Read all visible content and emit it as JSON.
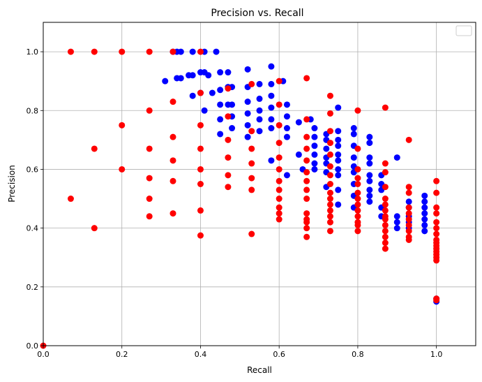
{
  "chart_data": {
    "type": "scatter",
    "title": "Precision vs. Recall",
    "xlabel": "Recall",
    "ylabel": "Precision",
    "xlim": [
      0,
      1.1
    ],
    "ylim": [
      0,
      1.1
    ],
    "xticks": [
      "0.0",
      "0.2",
      "0.4",
      "0.6",
      "0.8",
      "1.0"
    ],
    "yticks": [
      "0.0",
      "0.2",
      "0.4",
      "0.6",
      "0.8",
      "1.0"
    ],
    "grid": true,
    "legend": {
      "placement": "top-right",
      "entries": []
    },
    "series": [
      {
        "color": "#0000ff",
        "points": [
          [
            0.31,
            0.9
          ],
          [
            0.33,
            1.0
          ],
          [
            0.34,
            1.0
          ],
          [
            0.34,
            0.91
          ],
          [
            0.35,
            1.0
          ],
          [
            0.35,
            0.91
          ],
          [
            0.37,
            0.92
          ],
          [
            0.38,
            1.0
          ],
          [
            0.38,
            0.92
          ],
          [
            0.38,
            0.85
          ],
          [
            0.4,
            0.93
          ],
          [
            0.4,
            0.86
          ],
          [
            0.41,
            1.0
          ],
          [
            0.41,
            0.93
          ],
          [
            0.41,
            0.8
          ],
          [
            0.42,
            0.92
          ],
          [
            0.43,
            0.86
          ],
          [
            0.44,
            1.0
          ],
          [
            0.45,
            0.93
          ],
          [
            0.45,
            0.87
          ],
          [
            0.45,
            0.82
          ],
          [
            0.45,
            0.77
          ],
          [
            0.45,
            0.72
          ],
          [
            0.47,
            0.93
          ],
          [
            0.47,
            0.88
          ],
          [
            0.47,
            0.82
          ],
          [
            0.48,
            0.88
          ],
          [
            0.48,
            0.82
          ],
          [
            0.48,
            0.78
          ],
          [
            0.48,
            0.74
          ],
          [
            0.52,
            0.94
          ],
          [
            0.52,
            0.88
          ],
          [
            0.52,
            0.83
          ],
          [
            0.52,
            0.79
          ],
          [
            0.52,
            0.75
          ],
          [
            0.52,
            0.71
          ],
          [
            0.55,
            0.89
          ],
          [
            0.55,
            0.84
          ],
          [
            0.55,
            0.8
          ],
          [
            0.55,
            0.77
          ],
          [
            0.55,
            0.73
          ],
          [
            0.58,
            0.95
          ],
          [
            0.58,
            0.89
          ],
          [
            0.58,
            0.85
          ],
          [
            0.58,
            0.81
          ],
          [
            0.58,
            0.77
          ],
          [
            0.58,
            0.74
          ],
          [
            0.58,
            0.63
          ],
          [
            0.61,
            0.9
          ],
          [
            0.62,
            0.82
          ],
          [
            0.62,
            0.78
          ],
          [
            0.62,
            0.74
          ],
          [
            0.62,
            0.71
          ],
          [
            0.62,
            0.58
          ],
          [
            0.65,
            0.76
          ],
          [
            0.65,
            0.65
          ],
          [
            0.66,
            0.6
          ],
          [
            0.68,
            0.77
          ],
          [
            0.69,
            0.74
          ],
          [
            0.69,
            0.71
          ],
          [
            0.69,
            0.68
          ],
          [
            0.69,
            0.65
          ],
          [
            0.69,
            0.62
          ],
          [
            0.69,
            0.6
          ],
          [
            0.72,
            0.72
          ],
          [
            0.72,
            0.7
          ],
          [
            0.72,
            0.67
          ],
          [
            0.72,
            0.64
          ],
          [
            0.72,
            0.62
          ],
          [
            0.72,
            0.59
          ],
          [
            0.72,
            0.54
          ],
          [
            0.75,
            0.81
          ],
          [
            0.75,
            0.73
          ],
          [
            0.75,
            0.7
          ],
          [
            0.75,
            0.68
          ],
          [
            0.75,
            0.65
          ],
          [
            0.75,
            0.63
          ],
          [
            0.75,
            0.6
          ],
          [
            0.75,
            0.58
          ],
          [
            0.75,
            0.53
          ],
          [
            0.75,
            0.48
          ],
          [
            0.79,
            0.74
          ],
          [
            0.79,
            0.72
          ],
          [
            0.79,
            0.68
          ],
          [
            0.79,
            0.64
          ],
          [
            0.79,
            0.61
          ],
          [
            0.79,
            0.59
          ],
          [
            0.79,
            0.55
          ],
          [
            0.79,
            0.51
          ],
          [
            0.79,
            0.47
          ],
          [
            0.83,
            0.71
          ],
          [
            0.83,
            0.69
          ],
          [
            0.83,
            0.64
          ],
          [
            0.83,
            0.62
          ],
          [
            0.83,
            0.58
          ],
          [
            0.83,
            0.56
          ],
          [
            0.83,
            0.53
          ],
          [
            0.83,
            0.51
          ],
          [
            0.83,
            0.49
          ],
          [
            0.86,
            0.58
          ],
          [
            0.86,
            0.55
          ],
          [
            0.86,
            0.53
          ],
          [
            0.86,
            0.47
          ],
          [
            0.86,
            0.44
          ],
          [
            0.9,
            0.64
          ],
          [
            0.9,
            0.44
          ],
          [
            0.9,
            0.42
          ],
          [
            0.9,
            0.4
          ],
          [
            0.93,
            0.49
          ],
          [
            0.93,
            0.47
          ],
          [
            0.93,
            0.44
          ],
          [
            0.93,
            0.42
          ],
          [
            0.93,
            0.4
          ],
          [
            0.97,
            0.51
          ],
          [
            0.97,
            0.49
          ],
          [
            0.97,
            0.47
          ],
          [
            0.97,
            0.45
          ],
          [
            0.97,
            0.43
          ],
          [
            0.97,
            0.41
          ],
          [
            0.97,
            0.39
          ],
          [
            1.0,
            0.16
          ],
          [
            1.0,
            0.15
          ]
        ]
      },
      {
        "color": "#ff0000",
        "points": [
          [
            0.0,
            0.0
          ],
          [
            0.07,
            1.0
          ],
          [
            0.07,
            0.5
          ],
          [
            0.13,
            1.0
          ],
          [
            0.13,
            0.67
          ],
          [
            0.13,
            0.4
          ],
          [
            0.2,
            1.0
          ],
          [
            0.2,
            0.75
          ],
          [
            0.2,
            0.6
          ],
          [
            0.27,
            1.0
          ],
          [
            0.27,
            0.8
          ],
          [
            0.27,
            0.67
          ],
          [
            0.27,
            0.57
          ],
          [
            0.27,
            0.5
          ],
          [
            0.27,
            0.44
          ],
          [
            0.33,
            1.0
          ],
          [
            0.33,
            0.83
          ],
          [
            0.33,
            0.71
          ],
          [
            0.33,
            0.63
          ],
          [
            0.33,
            0.56
          ],
          [
            0.33,
            0.45
          ],
          [
            0.4,
            1.0
          ],
          [
            0.4,
            0.86
          ],
          [
            0.4,
            0.75
          ],
          [
            0.4,
            0.67
          ],
          [
            0.4,
            0.6
          ],
          [
            0.4,
            0.55
          ],
          [
            0.4,
            0.46
          ],
          [
            0.4,
            0.375
          ],
          [
            0.47,
            0.875
          ],
          [
            0.47,
            0.78
          ],
          [
            0.47,
            0.7
          ],
          [
            0.47,
            0.64
          ],
          [
            0.47,
            0.58
          ],
          [
            0.47,
            0.54
          ],
          [
            0.53,
            0.89
          ],
          [
            0.53,
            0.73
          ],
          [
            0.53,
            0.67
          ],
          [
            0.53,
            0.62
          ],
          [
            0.53,
            0.57
          ],
          [
            0.53,
            0.53
          ],
          [
            0.53,
            0.38
          ],
          [
            0.6,
            0.9
          ],
          [
            0.6,
            0.82
          ],
          [
            0.6,
            0.75
          ],
          [
            0.6,
            0.69
          ],
          [
            0.6,
            0.64
          ],
          [
            0.6,
            0.6
          ],
          [
            0.6,
            0.56
          ],
          [
            0.6,
            0.53
          ],
          [
            0.6,
            0.5
          ],
          [
            0.6,
            0.47
          ],
          [
            0.6,
            0.45
          ],
          [
            0.6,
            0.43
          ],
          [
            0.67,
            0.91
          ],
          [
            0.67,
            0.77
          ],
          [
            0.67,
            0.71
          ],
          [
            0.67,
            0.67
          ],
          [
            0.67,
            0.63
          ],
          [
            0.67,
            0.59
          ],
          [
            0.67,
            0.56
          ],
          [
            0.67,
            0.53
          ],
          [
            0.67,
            0.5
          ],
          [
            0.67,
            0.45
          ],
          [
            0.67,
            0.43
          ],
          [
            0.67,
            0.42
          ],
          [
            0.67,
            0.4
          ],
          [
            0.67,
            0.37
          ],
          [
            0.73,
            0.85
          ],
          [
            0.73,
            0.79
          ],
          [
            0.73,
            0.73
          ],
          [
            0.73,
            0.69
          ],
          [
            0.73,
            0.65
          ],
          [
            0.73,
            0.61
          ],
          [
            0.73,
            0.58
          ],
          [
            0.73,
            0.55
          ],
          [
            0.73,
            0.52
          ],
          [
            0.73,
            0.5
          ],
          [
            0.73,
            0.48
          ],
          [
            0.73,
            0.46
          ],
          [
            0.73,
            0.44
          ],
          [
            0.73,
            0.42
          ],
          [
            0.73,
            0.39
          ],
          [
            0.8,
            0.8
          ],
          [
            0.8,
            0.67
          ],
          [
            0.8,
            0.6
          ],
          [
            0.8,
            0.57
          ],
          [
            0.8,
            0.55
          ],
          [
            0.8,
            0.52
          ],
          [
            0.8,
            0.5
          ],
          [
            0.8,
            0.48
          ],
          [
            0.8,
            0.46
          ],
          [
            0.8,
            0.44
          ],
          [
            0.8,
            0.42
          ],
          [
            0.8,
            0.41
          ],
          [
            0.8,
            0.39
          ],
          [
            0.87,
            0.81
          ],
          [
            0.87,
            0.62
          ],
          [
            0.87,
            0.59
          ],
          [
            0.87,
            0.54
          ],
          [
            0.87,
            0.5
          ],
          [
            0.87,
            0.48
          ],
          [
            0.87,
            0.46
          ],
          [
            0.87,
            0.44
          ],
          [
            0.87,
            0.43
          ],
          [
            0.87,
            0.41
          ],
          [
            0.87,
            0.39
          ],
          [
            0.87,
            0.37
          ],
          [
            0.87,
            0.35
          ],
          [
            0.87,
            0.33
          ],
          [
            0.93,
            0.7
          ],
          [
            0.93,
            0.54
          ],
          [
            0.93,
            0.52
          ],
          [
            0.93,
            0.47
          ],
          [
            0.93,
            0.45
          ],
          [
            0.93,
            0.43
          ],
          [
            0.93,
            0.41
          ],
          [
            0.93,
            0.39
          ],
          [
            0.93,
            0.37
          ],
          [
            0.93,
            0.36
          ],
          [
            1.0,
            0.56
          ],
          [
            1.0,
            0.52
          ],
          [
            1.0,
            0.47
          ],
          [
            1.0,
            0.45
          ],
          [
            1.0,
            0.42
          ],
          [
            1.0,
            0.4
          ],
          [
            1.0,
            0.38
          ],
          [
            1.0,
            0.36
          ],
          [
            1.0,
            0.35
          ],
          [
            1.0,
            0.34
          ],
          [
            1.0,
            0.33
          ],
          [
            1.0,
            0.32
          ],
          [
            1.0,
            0.31
          ],
          [
            1.0,
            0.3
          ],
          [
            1.0,
            0.29
          ],
          [
            1.0,
            0.16
          ],
          [
            1.0,
            0.155
          ]
        ]
      }
    ]
  }
}
